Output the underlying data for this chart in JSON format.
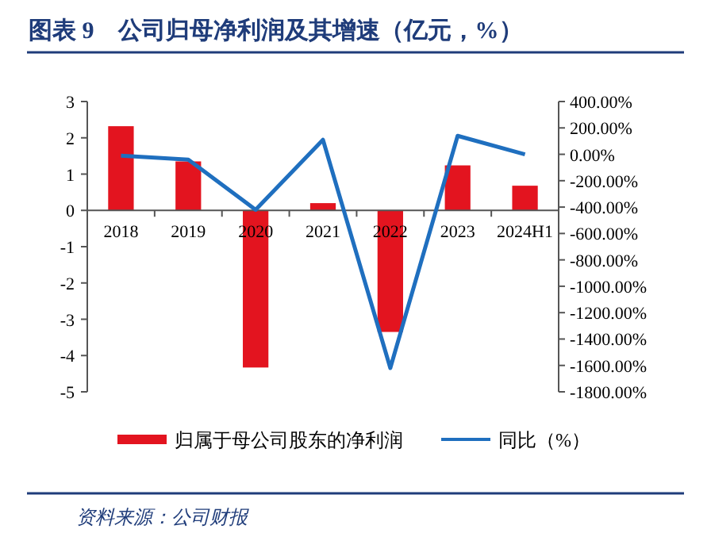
{
  "chart_data": {
    "type": "bar",
    "title": "图表 9　公司归母净利润及其增速（亿元，%）",
    "categories": [
      "2018",
      "2019",
      "2020",
      "2021",
      "2022",
      "2023",
      "2024H1"
    ],
    "series": [
      {
        "name": "归属于母公司股东的净利润",
        "color": "#e3141f",
        "values": [
          2.32,
          1.35,
          -4.33,
          0.2,
          -3.35,
          1.24,
          0.68
        ]
      },
      {
        "name": "同比（%）",
        "type": "line",
        "axis": "y2",
        "color": "#1f6fbf",
        "values": [
          -10,
          -40,
          -420,
          110,
          -1620,
          140,
          0
        ]
      }
    ],
    "ylim": [
      -5,
      3
    ],
    "yticks": [
      -5,
      -4,
      -3,
      -2,
      -1,
      0,
      1,
      2,
      3
    ],
    "y2lim": [
      -1800,
      400
    ],
    "y2ticks": [
      {
        "value": 400,
        "label": "400.00%"
      },
      {
        "value": 200,
        "label": "200.00%"
      },
      {
        "value": 0,
        "label": "0.00%"
      },
      {
        "value": -200,
        "label": "-200.00%"
      },
      {
        "value": -400,
        "label": "-400.00%"
      },
      {
        "value": -600,
        "label": "-600.00%"
      },
      {
        "value": -800,
        "label": "-800.00%"
      },
      {
        "value": -1000,
        "label": "-1000.00%"
      },
      {
        "value": -1200,
        "label": "-1200.00%"
      },
      {
        "value": -1400,
        "label": "-1400.00%"
      },
      {
        "value": -1600,
        "label": "-1600.00%"
      },
      {
        "value": -1800,
        "label": "-1800.00%"
      }
    ],
    "legend": "bottom",
    "annotations": [
      "资料来源：公司财报"
    ]
  }
}
